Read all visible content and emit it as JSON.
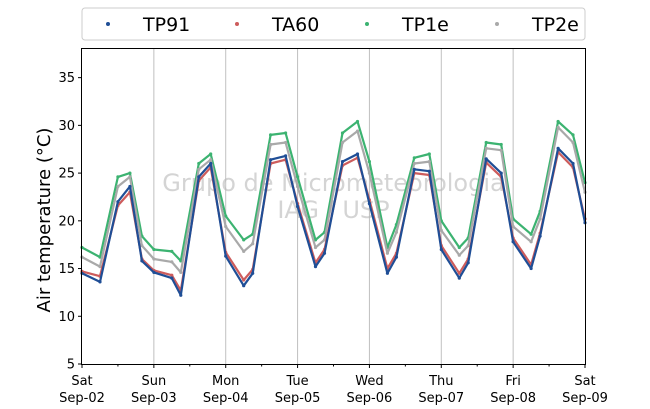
{
  "chart_data": {
    "type": "scatter",
    "ylabel": "Air temperature (°C)",
    "ylim": [
      5,
      38
    ],
    "yticks": [
      5,
      10,
      15,
      20,
      25,
      30,
      35
    ],
    "xlim": [
      "2017-09-02 00:00",
      "2017-09-09 00:00"
    ],
    "xticks": [
      {
        "day": "Sat",
        "date": "Sep-02"
      },
      {
        "day": "Sun",
        "date": "Sep-03"
      },
      {
        "day": "Mon",
        "date": "Sep-04"
      },
      {
        "day": "Tue",
        "date": "Sep-05"
      },
      {
        "day": "Wed",
        "date": "Sep-06"
      },
      {
        "day": "Thu",
        "date": "Sep-07"
      },
      {
        "day": "Fri",
        "date": "Sep-08"
      },
      {
        "day": "Sat",
        "date": "Sep-09"
      }
    ],
    "grid": "vertical",
    "legend_position": "top",
    "watermark": [
      "Grupo de Micrometeorologia",
      "IAG / USP"
    ],
    "x": [
      "Sep-02 00:00",
      "Sep-02 06:00",
      "Sep-02 12:00",
      "Sep-02 16:00",
      "Sep-02 20:00",
      "Sep-03 00:00",
      "Sep-03 06:00",
      "Sep-03 09:00",
      "Sep-03 15:00",
      "Sep-03 19:00",
      "Sep-04 00:00",
      "Sep-04 06:00",
      "Sep-04 09:00",
      "Sep-04 15:00",
      "Sep-04 20:00",
      "Sep-05 00:00",
      "Sep-05 06:00",
      "Sep-05 09:00",
      "Sep-05 15:00",
      "Sep-05 20:00",
      "Sep-06 00:00",
      "Sep-06 06:00",
      "Sep-06 09:00",
      "Sep-06 15:00",
      "Sep-06 20:00",
      "Sep-07 00:00",
      "Sep-07 06:00",
      "Sep-07 09:00",
      "Sep-07 15:00",
      "Sep-07 20:00",
      "Sep-08 00:00",
      "Sep-08 06:00",
      "Sep-08 09:00",
      "Sep-08 15:00",
      "Sep-08 20:00",
      "Sep-09 00:00"
    ],
    "series": [
      {
        "name": "TP91",
        "color": "#1f4e96",
        "values": [
          14.5,
          13.6,
          22.0,
          23.6,
          15.8,
          14.6,
          14.0,
          12.2,
          24.6,
          26.0,
          16.3,
          13.2,
          14.5,
          26.4,
          26.8,
          21.5,
          15.2,
          16.6,
          26.2,
          27.0,
          21.8,
          14.5,
          16.2,
          25.4,
          25.2,
          17.0,
          14.0,
          15.6,
          26.5,
          25.0,
          17.8,
          15.0,
          18.4,
          27.6,
          26.0,
          19.8
        ]
      },
      {
        "name": "TA60",
        "color": "#cd5c5c",
        "values": [
          14.7,
          14.2,
          21.6,
          23.0,
          16.0,
          14.8,
          14.3,
          12.7,
          24.2,
          25.6,
          16.7,
          13.8,
          14.9,
          26.0,
          26.4,
          21.8,
          15.6,
          17.0,
          25.8,
          26.6,
          22.2,
          15.0,
          16.6,
          25.0,
          24.8,
          17.4,
          14.5,
          16.0,
          26.1,
          24.6,
          18.2,
          15.4,
          18.7,
          27.2,
          25.6,
          20.2
        ]
      },
      {
        "name": "TP1e",
        "color": "#3cb371",
        "values": [
          17.2,
          16.2,
          24.6,
          25.0,
          18.4,
          17.0,
          16.8,
          15.8,
          26.0,
          27.0,
          20.5,
          18.0,
          18.6,
          29.0,
          29.2,
          24.6,
          18.0,
          18.8,
          29.2,
          30.4,
          26.2,
          17.2,
          19.6,
          26.6,
          27.0,
          20.0,
          17.2,
          18.2,
          28.2,
          28.0,
          20.2,
          18.6,
          21.0,
          30.4,
          29.0,
          24.0
        ]
      },
      {
        "name": "TP2e",
        "color": "#a9a9a9",
        "values": [
          16.2,
          15.2,
          23.6,
          24.6,
          17.4,
          16.0,
          15.7,
          14.6,
          25.4,
          26.4,
          19.4,
          16.8,
          17.6,
          28.0,
          28.2,
          23.6,
          17.2,
          18.0,
          28.2,
          29.4,
          25.0,
          16.6,
          18.8,
          26.0,
          26.2,
          19.0,
          16.4,
          17.4,
          27.6,
          27.4,
          19.4,
          17.8,
          20.2,
          29.8,
          28.2,
          23.0
        ]
      }
    ]
  }
}
